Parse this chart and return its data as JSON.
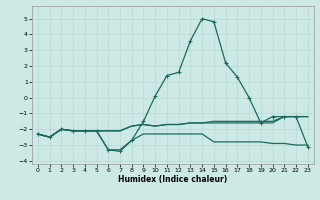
{
  "xlabel": "Humidex (Indice chaleur)",
  "xlim": [
    -0.5,
    23.5
  ],
  "ylim": [
    -4.2,
    5.8
  ],
  "yticks": [
    -4,
    -3,
    -2,
    -1,
    0,
    1,
    2,
    3,
    4,
    5
  ],
  "xticks": [
    0,
    1,
    2,
    3,
    4,
    5,
    6,
    7,
    8,
    9,
    10,
    11,
    12,
    13,
    14,
    15,
    16,
    17,
    18,
    19,
    20,
    21,
    22,
    23
  ],
  "background_color": "#cce9e5",
  "grid_color": "#b8d8d4",
  "line_color": "#1a6b5e",
  "line1_y": [
    -2.3,
    -2.5,
    -2.0,
    -2.1,
    -2.1,
    -2.1,
    -3.3,
    -3.3,
    -2.7,
    -2.3,
    -2.3,
    -2.3,
    -2.3,
    -2.3,
    -2.3,
    -2.8,
    -2.8,
    -2.8,
    -2.8,
    -2.8,
    -2.9,
    -2.9,
    -3.0,
    -3.0
  ],
  "line2_y": [
    -2.3,
    -2.5,
    -2.0,
    -2.1,
    -2.1,
    -2.1,
    -2.1,
    -2.1,
    -1.8,
    -1.7,
    -1.8,
    -1.7,
    -1.7,
    -1.6,
    -1.6,
    -1.6,
    -1.6,
    -1.6,
    -1.6,
    -1.6,
    -1.6,
    -1.2,
    -1.2,
    -1.2
  ],
  "line3_y": [
    -2.3,
    -2.5,
    -2.0,
    -2.1,
    -2.1,
    -2.1,
    -2.1,
    -2.1,
    -1.8,
    -1.7,
    -1.8,
    -1.7,
    -1.7,
    -1.6,
    -1.6,
    -1.5,
    -1.5,
    -1.5,
    -1.5,
    -1.5,
    -1.5,
    -1.2,
    -1.2,
    -1.2
  ],
  "line4_y": [
    -2.3,
    -2.5,
    -2.0,
    -2.1,
    -2.1,
    -2.1,
    -3.3,
    -3.4,
    -2.7,
    -1.5,
    0.1,
    1.4,
    1.6,
    3.6,
    5.0,
    4.8,
    2.2,
    1.3,
    0.0,
    -1.6,
    -1.2,
    -1.2,
    -1.2,
    -3.1
  ]
}
